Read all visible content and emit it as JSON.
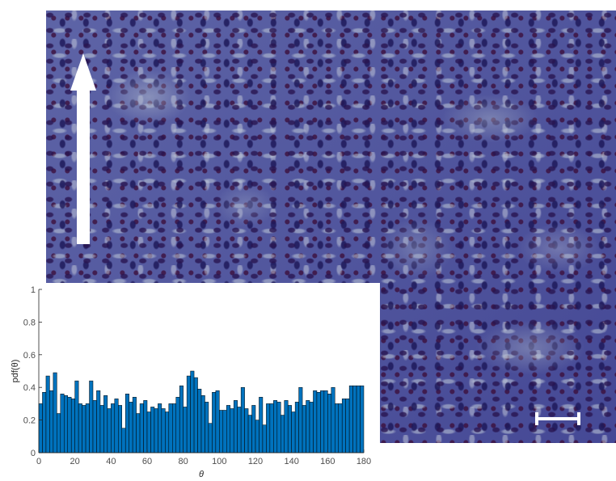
{
  "image": {
    "description_colors": {
      "stain": "#4a4f9a",
      "arrow": "#ffffff",
      "scale_bar": "#ffffff"
    }
  },
  "chart_data": {
    "type": "bar",
    "title": "",
    "xlabel": "θ",
    "ylabel": "pdf(θ)",
    "xlim": [
      0,
      180
    ],
    "ylim": [
      0,
      1
    ],
    "xticks": [
      0,
      20,
      40,
      60,
      80,
      100,
      120,
      140,
      160,
      180
    ],
    "yticks": [
      0,
      0.2,
      0.4,
      0.6,
      0.8,
      1
    ],
    "bar_color": "#0072bd",
    "bar_width_deg": 2,
    "grid": false,
    "legend": "none",
    "x": [
      1,
      3,
      5,
      7,
      9,
      11,
      13,
      15,
      17,
      19,
      21,
      23,
      25,
      27,
      29,
      31,
      33,
      35,
      37,
      39,
      41,
      43,
      45,
      47,
      49,
      51,
      53,
      55,
      57,
      59,
      61,
      63,
      65,
      67,
      69,
      71,
      73,
      75,
      77,
      79,
      81,
      83,
      85,
      87,
      89,
      91,
      93,
      95,
      97,
      99,
      101,
      103,
      105,
      107,
      109,
      111,
      113,
      115,
      117,
      119,
      121,
      123,
      125,
      127,
      129,
      131,
      133,
      135,
      137,
      139,
      141,
      143,
      145,
      147,
      149,
      151,
      153,
      155,
      157,
      159,
      161,
      163,
      165,
      167,
      169,
      171,
      173,
      175,
      177,
      179
    ],
    "values": [
      0.3,
      0.37,
      0.47,
      0.38,
      0.49,
      0.24,
      0.36,
      0.35,
      0.34,
      0.33,
      0.44,
      0.3,
      0.29,
      0.3,
      0.44,
      0.32,
      0.38,
      0.29,
      0.35,
      0.27,
      0.3,
      0.33,
      0.29,
      0.15,
      0.36,
      0.31,
      0.34,
      0.24,
      0.3,
      0.32,
      0.25,
      0.28,
      0.27,
      0.3,
      0.27,
      0.25,
      0.3,
      0.3,
      0.34,
      0.41,
      0.28,
      0.47,
      0.5,
      0.46,
      0.39,
      0.35,
      0.31,
      0.18,
      0.37,
      0.38,
      0.26,
      0.26,
      0.29,
      0.27,
      0.32,
      0.28,
      0.4,
      0.27,
      0.23,
      0.29,
      0.2,
      0.34,
      0.17,
      0.3,
      0.3,
      0.32,
      0.31,
      0.23,
      0.32,
      0.29,
      0.25,
      0.31,
      0.4,
      0.29,
      0.32,
      0.31,
      0.38,
      0.37,
      0.38,
      0.38,
      0.36,
      0.4,
      0.3,
      0.3,
      0.33,
      0.33,
      0.41,
      0.41,
      0.41,
      0.41
    ]
  }
}
